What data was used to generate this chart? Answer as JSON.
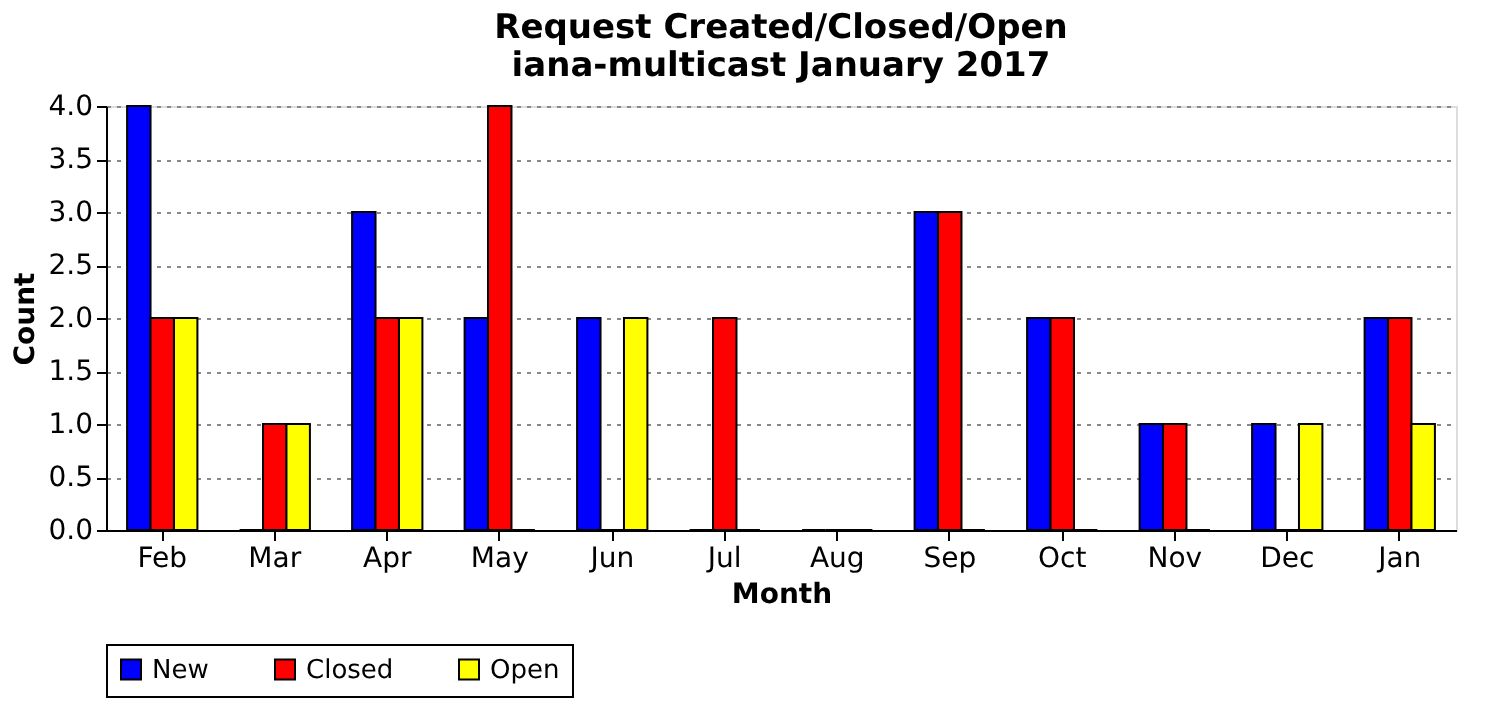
{
  "chart_data": {
    "type": "bar",
    "title": "Request Created/Closed/Open\niana-multicast January 2017",
    "xlabel": "Month",
    "ylabel": "Count",
    "categories": [
      "Feb",
      "Mar",
      "Apr",
      "May",
      "Jun",
      "Jul",
      "Aug",
      "Sep",
      "Oct",
      "Nov",
      "Dec",
      "Jan"
    ],
    "series": [
      {
        "name": "New",
        "color": "#0000ff",
        "values": [
          4,
          0,
          3,
          2,
          2,
          0,
          0,
          3,
          2,
          1,
          1,
          2
        ]
      },
      {
        "name": "Closed",
        "color": "#ff0000",
        "values": [
          2,
          1,
          2,
          4,
          0,
          2,
          0,
          3,
          2,
          1,
          0,
          2
        ]
      },
      {
        "name": "Open",
        "color": "#ffff00",
        "values": [
          2,
          1,
          2,
          0,
          2,
          0,
          0,
          0,
          0,
          0,
          1,
          1
        ]
      }
    ],
    "ylim": [
      0,
      4
    ],
    "yticks": [
      {
        "value": 0,
        "label": "0.0"
      },
      {
        "value": 0.5,
        "label": "0.5"
      },
      {
        "value": 1,
        "label": "1.0"
      },
      {
        "value": 1.5,
        "label": "1.5"
      },
      {
        "value": 2,
        "label": "2.0"
      },
      {
        "value": 2.5,
        "label": "2.5"
      },
      {
        "value": 3,
        "label": "3.0"
      },
      {
        "value": 3.5,
        "label": "3.5"
      },
      {
        "value": 4,
        "label": "4.0"
      }
    ],
    "grid": "y",
    "legend": "bottom"
  }
}
